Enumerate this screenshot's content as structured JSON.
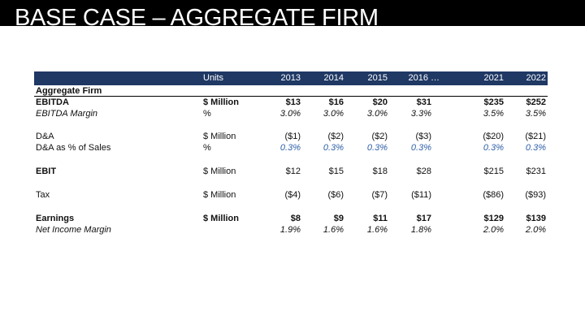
{
  "title": "BASE CASE – AGGREGATE FIRM",
  "table": {
    "header": {
      "units": "Units",
      "years": [
        "2013",
        "2014",
        "2015",
        "2016 …",
        "2021",
        "2022"
      ]
    },
    "section_label": "Aggregate Firm",
    "rows": [
      {
        "label": "EBITDA",
        "unit": "$ Million",
        "values": [
          "$13",
          "$16",
          "$20",
          "$31",
          "$235",
          "$252"
        ]
      },
      {
        "label": "EBITDA Margin",
        "unit": "%",
        "values": [
          "3.0%",
          "3.0%",
          "3.0%",
          "3.3%",
          "3.5%",
          "3.5%"
        ]
      },
      {
        "label": "D&A",
        "unit": "$ Million",
        "values": [
          "($1)",
          "($2)",
          "($2)",
          "($3)",
          "($20)",
          "($21)"
        ]
      },
      {
        "label": "D&A as % of Sales",
        "unit": "%",
        "values": [
          "0.3%",
          "0.3%",
          "0.3%",
          "0.3%",
          "0.3%",
          "0.3%"
        ]
      },
      {
        "label": "EBIT",
        "unit": "$ Million",
        "values": [
          "$12",
          "$15",
          "$18",
          "$28",
          "$215",
          "$231"
        ]
      },
      {
        "label": "Tax",
        "unit": "$ Million",
        "values": [
          "($4)",
          "($6)",
          "($7)",
          "($11)",
          "($86)",
          "($93)"
        ]
      },
      {
        "label": "Earnings",
        "unit": "$ Million",
        "values": [
          "$8",
          "$9",
          "$11",
          "$17",
          "$129",
          "$139"
        ]
      },
      {
        "label": "Net Income Margin",
        "unit": "",
        "values": [
          "1.9%",
          "1.6%",
          "1.6%",
          "1.8%",
          "2.0%",
          "2.0%"
        ]
      }
    ]
  },
  "colors": {
    "header_bg": "#1f3864",
    "input_blue": "#2e5fa8",
    "title_bar": "#000000"
  }
}
